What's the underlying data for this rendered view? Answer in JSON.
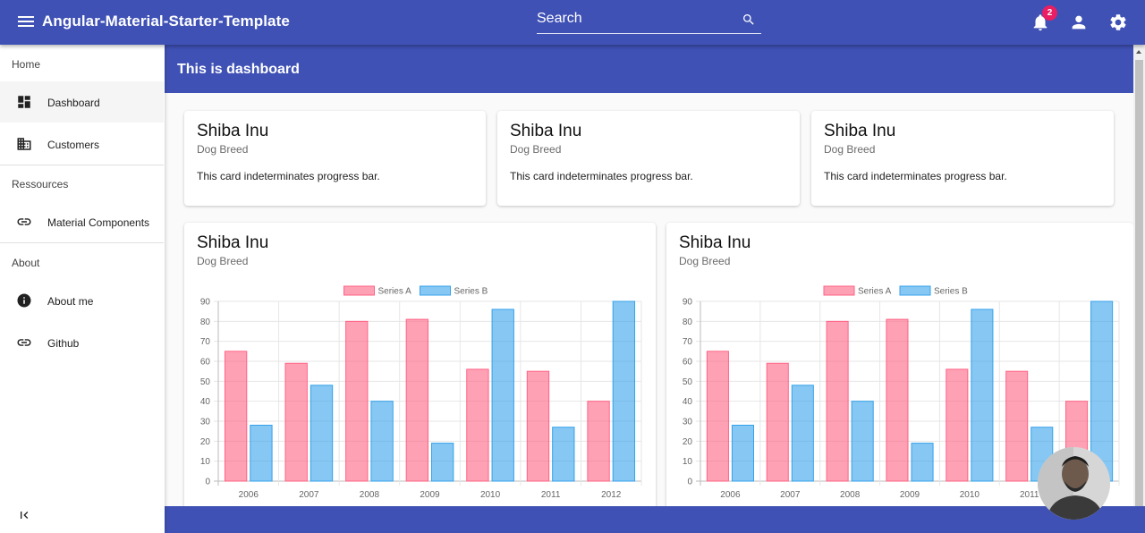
{
  "toolbar": {
    "app_title": "Angular-Material-Starter-Template",
    "search_placeholder": "Search",
    "notification_count": "2"
  },
  "sidebar": {
    "groups": [
      {
        "label": "Home",
        "items": [
          {
            "label": "Dashboard",
            "icon": "dashboard-icon"
          },
          {
            "label": "Customers",
            "icon": "business-icon"
          }
        ]
      },
      {
        "label": "Ressources",
        "items": [
          {
            "label": "Material Components",
            "icon": "link-icon"
          }
        ]
      },
      {
        "label": "About",
        "items": [
          {
            "label": "About me",
            "icon": "info-icon"
          },
          {
            "label": "Github",
            "icon": "link-icon"
          }
        ]
      }
    ]
  },
  "page": {
    "title": "This is dashboard"
  },
  "cards": [
    {
      "title": "Shiba Inu",
      "subtitle": "Dog Breed",
      "text": "This card indeterminates progress bar."
    },
    {
      "title": "Shiba Inu",
      "subtitle": "Dog Breed",
      "text": "This card indeterminates progress bar."
    },
    {
      "title": "Shiba Inu",
      "subtitle": "Dog Breed",
      "text": "This card indeterminates progress bar."
    }
  ],
  "chart_cards": [
    {
      "title": "Shiba Inu",
      "subtitle": "Dog Breed"
    },
    {
      "title": "Shiba Inu",
      "subtitle": "Dog Breed"
    }
  ],
  "chart_data": [
    {
      "type": "bar",
      "categories": [
        "2006",
        "2007",
        "2008",
        "2009",
        "2010",
        "2011",
        "2012"
      ],
      "series": [
        {
          "name": "Series A",
          "values": [
            65,
            59,
            80,
            81,
            56,
            55,
            40
          ],
          "color": "#ff6384"
        },
        {
          "name": "Series B",
          "values": [
            28,
            48,
            40,
            19,
            86,
            27,
            90
          ],
          "color": "#36a2eb"
        }
      ],
      "ylim": [
        0,
        90
      ],
      "yticks": [
        0,
        10,
        20,
        30,
        40,
        50,
        60,
        70,
        80,
        90
      ],
      "legend": "top",
      "grid": true
    },
    {
      "type": "bar",
      "categories": [
        "2006",
        "2007",
        "2008",
        "2009",
        "2010",
        "2011",
        "2012"
      ],
      "series": [
        {
          "name": "Series A",
          "values": [
            65,
            59,
            80,
            81,
            56,
            55,
            40
          ],
          "color": "#ff6384"
        },
        {
          "name": "Series B",
          "values": [
            28,
            48,
            40,
            19,
            86,
            27,
            90
          ],
          "color": "#36a2eb"
        }
      ],
      "ylim": [
        0,
        90
      ],
      "yticks": [
        0,
        10,
        20,
        30,
        40,
        50,
        60,
        70,
        80,
        90
      ],
      "legend": "top",
      "grid": true
    }
  ],
  "colors": {
    "primary": "#3f51b5",
    "badge": "#e91e63"
  }
}
